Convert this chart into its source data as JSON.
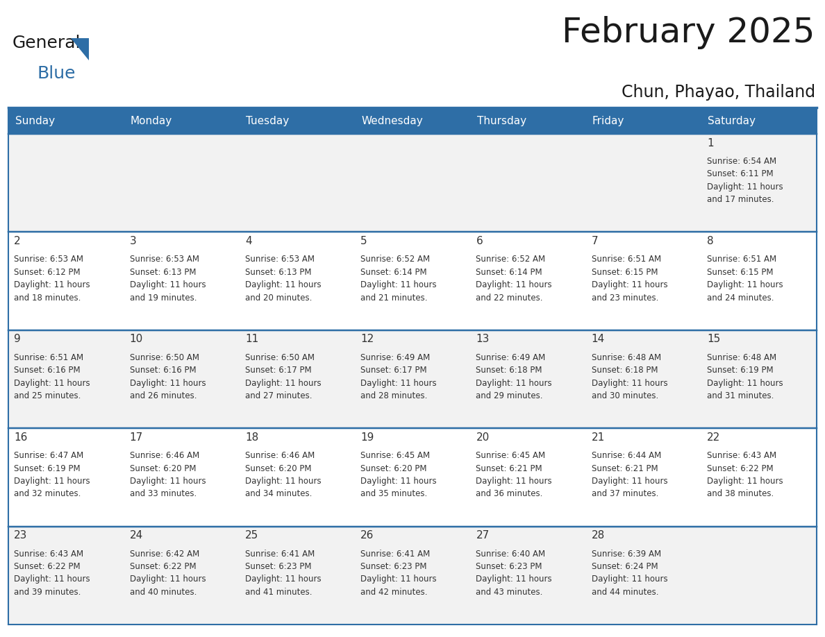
{
  "title": "February 2025",
  "subtitle": "Chun, Phayao, Thailand",
  "header_bg_color": "#2E6EA6",
  "header_text_color": "#FFFFFF",
  "cell_bg_color_even": "#F2F2F2",
  "cell_bg_color_odd": "#FFFFFF",
  "border_color": "#2E6EA6",
  "text_color": "#333333",
  "day_number_color": "#333333",
  "days_of_week": [
    "Sunday",
    "Monday",
    "Tuesday",
    "Wednesday",
    "Thursday",
    "Friday",
    "Saturday"
  ],
  "weeks": [
    [
      {
        "day": null,
        "sunrise": null,
        "sunset": null,
        "daylight_hours": null,
        "daylight_minutes": null
      },
      {
        "day": null,
        "sunrise": null,
        "sunset": null,
        "daylight_hours": null,
        "daylight_minutes": null
      },
      {
        "day": null,
        "sunrise": null,
        "sunset": null,
        "daylight_hours": null,
        "daylight_minutes": null
      },
      {
        "day": null,
        "sunrise": null,
        "sunset": null,
        "daylight_hours": null,
        "daylight_minutes": null
      },
      {
        "day": null,
        "sunrise": null,
        "sunset": null,
        "daylight_hours": null,
        "daylight_minutes": null
      },
      {
        "day": null,
        "sunrise": null,
        "sunset": null,
        "daylight_hours": null,
        "daylight_minutes": null
      },
      {
        "day": 1,
        "sunrise": "6:54 AM",
        "sunset": "6:11 PM",
        "daylight_hours": 11,
        "daylight_minutes": 17
      }
    ],
    [
      {
        "day": 2,
        "sunrise": "6:53 AM",
        "sunset": "6:12 PM",
        "daylight_hours": 11,
        "daylight_minutes": 18
      },
      {
        "day": 3,
        "sunrise": "6:53 AM",
        "sunset": "6:13 PM",
        "daylight_hours": 11,
        "daylight_minutes": 19
      },
      {
        "day": 4,
        "sunrise": "6:53 AM",
        "sunset": "6:13 PM",
        "daylight_hours": 11,
        "daylight_minutes": 20
      },
      {
        "day": 5,
        "sunrise": "6:52 AM",
        "sunset": "6:14 PM",
        "daylight_hours": 11,
        "daylight_minutes": 21
      },
      {
        "day": 6,
        "sunrise": "6:52 AM",
        "sunset": "6:14 PM",
        "daylight_hours": 11,
        "daylight_minutes": 22
      },
      {
        "day": 7,
        "sunrise": "6:51 AM",
        "sunset": "6:15 PM",
        "daylight_hours": 11,
        "daylight_minutes": 23
      },
      {
        "day": 8,
        "sunrise": "6:51 AM",
        "sunset": "6:15 PM",
        "daylight_hours": 11,
        "daylight_minutes": 24
      }
    ],
    [
      {
        "day": 9,
        "sunrise": "6:51 AM",
        "sunset": "6:16 PM",
        "daylight_hours": 11,
        "daylight_minutes": 25
      },
      {
        "day": 10,
        "sunrise": "6:50 AM",
        "sunset": "6:16 PM",
        "daylight_hours": 11,
        "daylight_minutes": 26
      },
      {
        "day": 11,
        "sunrise": "6:50 AM",
        "sunset": "6:17 PM",
        "daylight_hours": 11,
        "daylight_minutes": 27
      },
      {
        "day": 12,
        "sunrise": "6:49 AM",
        "sunset": "6:17 PM",
        "daylight_hours": 11,
        "daylight_minutes": 28
      },
      {
        "day": 13,
        "sunrise": "6:49 AM",
        "sunset": "6:18 PM",
        "daylight_hours": 11,
        "daylight_minutes": 29
      },
      {
        "day": 14,
        "sunrise": "6:48 AM",
        "sunset": "6:18 PM",
        "daylight_hours": 11,
        "daylight_minutes": 30
      },
      {
        "day": 15,
        "sunrise": "6:48 AM",
        "sunset": "6:19 PM",
        "daylight_hours": 11,
        "daylight_minutes": 31
      }
    ],
    [
      {
        "day": 16,
        "sunrise": "6:47 AM",
        "sunset": "6:19 PM",
        "daylight_hours": 11,
        "daylight_minutes": 32
      },
      {
        "day": 17,
        "sunrise": "6:46 AM",
        "sunset": "6:20 PM",
        "daylight_hours": 11,
        "daylight_minutes": 33
      },
      {
        "day": 18,
        "sunrise": "6:46 AM",
        "sunset": "6:20 PM",
        "daylight_hours": 11,
        "daylight_minutes": 34
      },
      {
        "day": 19,
        "sunrise": "6:45 AM",
        "sunset": "6:20 PM",
        "daylight_hours": 11,
        "daylight_minutes": 35
      },
      {
        "day": 20,
        "sunrise": "6:45 AM",
        "sunset": "6:21 PM",
        "daylight_hours": 11,
        "daylight_minutes": 36
      },
      {
        "day": 21,
        "sunrise": "6:44 AM",
        "sunset": "6:21 PM",
        "daylight_hours": 11,
        "daylight_minutes": 37
      },
      {
        "day": 22,
        "sunrise": "6:43 AM",
        "sunset": "6:22 PM",
        "daylight_hours": 11,
        "daylight_minutes": 38
      }
    ],
    [
      {
        "day": 23,
        "sunrise": "6:43 AM",
        "sunset": "6:22 PM",
        "daylight_hours": 11,
        "daylight_minutes": 39
      },
      {
        "day": 24,
        "sunrise": "6:42 AM",
        "sunset": "6:22 PM",
        "daylight_hours": 11,
        "daylight_minutes": 40
      },
      {
        "day": 25,
        "sunrise": "6:41 AM",
        "sunset": "6:23 PM",
        "daylight_hours": 11,
        "daylight_minutes": 41
      },
      {
        "day": 26,
        "sunrise": "6:41 AM",
        "sunset": "6:23 PM",
        "daylight_hours": 11,
        "daylight_minutes": 42
      },
      {
        "day": 27,
        "sunrise": "6:40 AM",
        "sunset": "6:23 PM",
        "daylight_hours": 11,
        "daylight_minutes": 43
      },
      {
        "day": 28,
        "sunrise": "6:39 AM",
        "sunset": "6:24 PM",
        "daylight_hours": 11,
        "daylight_minutes": 44
      },
      {
        "day": null,
        "sunrise": null,
        "sunset": null,
        "daylight_hours": null,
        "daylight_minutes": null
      }
    ]
  ],
  "fig_width": 11.88,
  "fig_height": 9.18,
  "dpi": 100,
  "title_fontsize": 36,
  "subtitle_fontsize": 17,
  "header_fontsize": 11,
  "day_num_fontsize": 11,
  "cell_text_fontsize": 8.5,
  "logo_general_fontsize": 18,
  "logo_blue_fontsize": 18
}
